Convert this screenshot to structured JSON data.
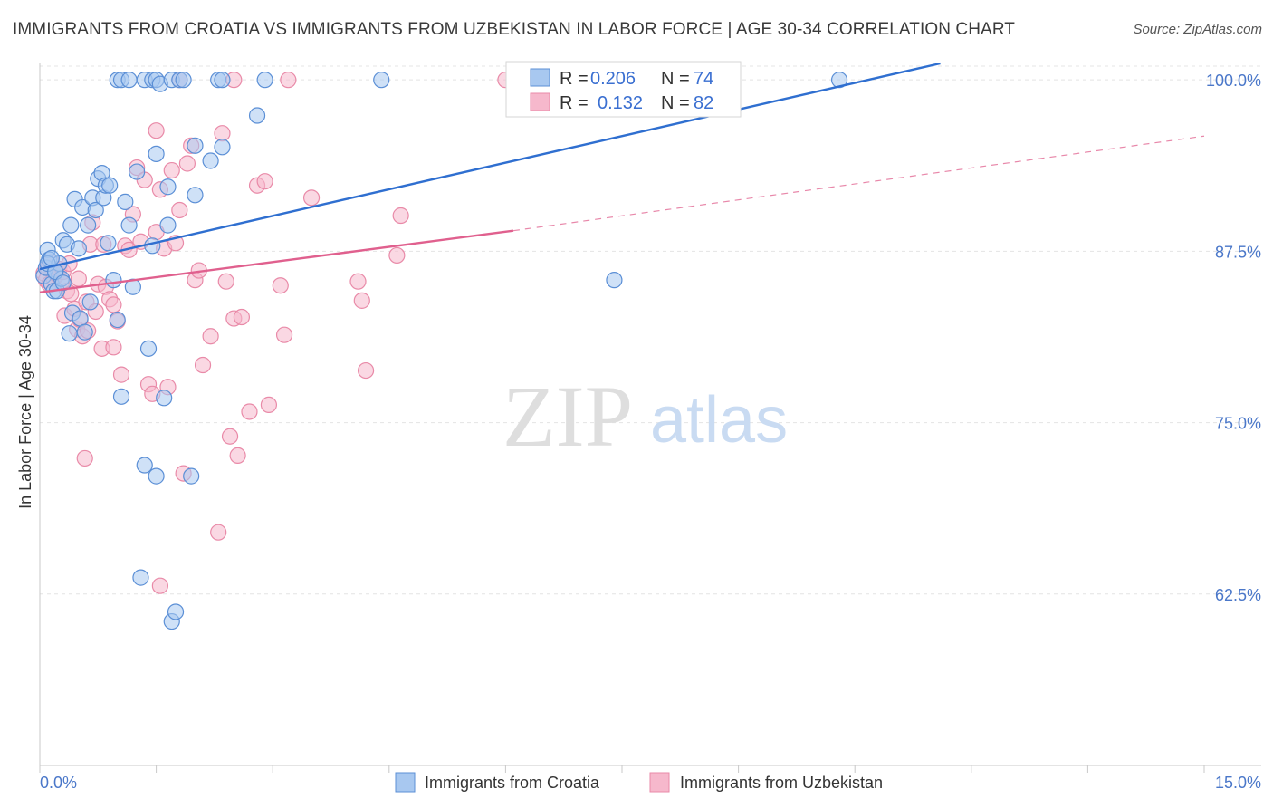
{
  "title": "IMMIGRANTS FROM CROATIA VS IMMIGRANTS FROM UZBEKISTAN IN LABOR FORCE | AGE 30-34 CORRELATION CHART",
  "source": "Source: ZipAtlas.com",
  "watermark": {
    "zip": "ZIP",
    "atlas": "atlas"
  },
  "colors": {
    "croatia_fill": "#a8c8f0",
    "croatia_stroke": "#5b8fd6",
    "croatia_line": "#2f6fd0",
    "uzbek_fill": "#f6b8cc",
    "uzbek_stroke": "#e98aa8",
    "uzbek_line": "#e0608e",
    "tick": "#4a77c9"
  },
  "stats_legend": {
    "rows": [
      {
        "r_label": "R =",
        "r_value": "0.206",
        "n_label": "N =",
        "n_value": "74"
      },
      {
        "r_label": "R =",
        "r_value": "0.132",
        "n_label": "N =",
        "n_value": "82"
      }
    ]
  },
  "chart_data": {
    "type": "scatter",
    "title": "IMMIGRANTS FROM CROATIA VS IMMIGRANTS FROM UZBEKISTAN IN LABOR FORCE | AGE 30-34 CORRELATION CHART",
    "xlabel": "",
    "ylabel": "In Labor Force | Age 30-34",
    "xlim": [
      0,
      15
    ],
    "ylim": [
      50,
      101.2
    ],
    "x_ticks": [
      "0.0%",
      "15.0%"
    ],
    "y_ticks": [
      {
        "value": 100,
        "label": "100.0%"
      },
      {
        "value": 87.5,
        "label": "87.5%"
      },
      {
        "value": 75,
        "label": "75.0%"
      },
      {
        "value": 62.5,
        "label": "62.5%"
      }
    ],
    "legend": [
      "Immigrants from Croatia",
      "Immigrants from Uzbekistan"
    ],
    "series": [
      {
        "name": "Immigrants from Croatia",
        "r": 0.206,
        "n": 74,
        "trend": {
          "x": [
            0,
            11.6
          ],
          "y": [
            86.2,
            101.2
          ],
          "dashed_to": null
        },
        "points": [
          [
            0.05,
            85.7
          ],
          [
            0.08,
            86.3
          ],
          [
            0.1,
            87.6
          ],
          [
            0.12,
            86.9
          ],
          [
            0.15,
            85.1
          ],
          [
            0.18,
            84.6
          ],
          [
            0.2,
            86.0
          ],
          [
            0.22,
            84.6
          ],
          [
            0.25,
            86.6
          ],
          [
            0.28,
            85.5
          ],
          [
            0.3,
            88.3
          ],
          [
            0.35,
            88.0
          ],
          [
            0.38,
            81.5
          ],
          [
            0.4,
            89.4
          ],
          [
            0.42,
            83.0
          ],
          [
            0.45,
            91.3
          ],
          [
            0.5,
            87.7
          ],
          [
            0.52,
            82.6
          ],
          [
            0.55,
            90.7
          ],
          [
            0.58,
            81.6
          ],
          [
            0.62,
            89.4
          ],
          [
            0.65,
            83.8
          ],
          [
            0.68,
            91.4
          ],
          [
            0.72,
            90.5
          ],
          [
            0.75,
            92.8
          ],
          [
            0.8,
            93.2
          ],
          [
            0.82,
            91.4
          ],
          [
            0.85,
            92.3
          ],
          [
            0.88,
            88.1
          ],
          [
            0.9,
            92.3
          ],
          [
            0.95,
            85.4
          ],
          [
            1.0,
            82.5
          ],
          [
            1.05,
            76.9
          ],
          [
            1.1,
            91.1
          ],
          [
            1.15,
            89.4
          ],
          [
            1.2,
            84.9
          ],
          [
            1.25,
            93.3
          ],
          [
            1.3,
            63.7
          ],
          [
            1.35,
            71.9
          ],
          [
            1.4,
            80.4
          ],
          [
            1.45,
            87.9
          ],
          [
            1.5,
            94.6
          ],
          [
            1.5,
            71.1
          ],
          [
            1.6,
            76.8
          ],
          [
            1.65,
            92.2
          ],
          [
            1.65,
            89.4
          ],
          [
            1.7,
            60.5
          ],
          [
            1.75,
            61.2
          ],
          [
            1.95,
            71.1
          ],
          [
            2.0,
            91.6
          ],
          [
            2.0,
            95.2
          ],
          [
            2.2,
            94.1
          ],
          [
            2.3,
            100.0
          ],
          [
            2.35,
            100.0
          ],
          [
            2.35,
            95.1
          ],
          [
            2.8,
            97.4
          ],
          [
            2.9,
            100.0
          ],
          [
            1.0,
            100.0
          ],
          [
            1.05,
            100.0
          ],
          [
            1.15,
            100.0
          ],
          [
            1.35,
            100.0
          ],
          [
            1.45,
            100.0
          ],
          [
            1.5,
            100.0
          ],
          [
            1.55,
            99.7
          ],
          [
            1.7,
            100.0
          ],
          [
            1.8,
            100.0
          ],
          [
            1.85,
            100.0
          ],
          [
            4.4,
            100.0
          ],
          [
            7.4,
            85.4
          ],
          [
            10.3,
            100.0
          ],
          [
            0.1,
            86.6
          ],
          [
            0.2,
            86.0
          ],
          [
            0.3,
            85.2
          ],
          [
            0.15,
            87.0
          ]
        ]
      },
      {
        "name": "Immigrants from Uzbekistan",
        "r": 0.132,
        "n": 82,
        "trend": {
          "x": [
            0,
            6.1
          ],
          "y": [
            84.5,
            89.0
          ],
          "dashed_to": [
            15,
            95.9
          ]
        },
        "points": [
          [
            0.05,
            85.9
          ],
          [
            0.08,
            85.4
          ],
          [
            0.1,
            86.3
          ],
          [
            0.12,
            85.1
          ],
          [
            0.15,
            86.7
          ],
          [
            0.18,
            85.5
          ],
          [
            0.2,
            85.9
          ],
          [
            0.22,
            85.8
          ],
          [
            0.25,
            86.2
          ],
          [
            0.28,
            85.2
          ],
          [
            0.3,
            86.0
          ],
          [
            0.32,
            82.8
          ],
          [
            0.35,
            84.6
          ],
          [
            0.38,
            86.6
          ],
          [
            0.4,
            84.4
          ],
          [
            0.45,
            83.3
          ],
          [
            0.48,
            81.8
          ],
          [
            0.5,
            85.5
          ],
          [
            0.52,
            82.5
          ],
          [
            0.55,
            81.3
          ],
          [
            0.58,
            72.4
          ],
          [
            0.6,
            83.8
          ],
          [
            0.62,
            81.7
          ],
          [
            0.65,
            88.0
          ],
          [
            0.68,
            89.6
          ],
          [
            0.72,
            83.1
          ],
          [
            0.75,
            85.1
          ],
          [
            0.8,
            80.4
          ],
          [
            0.82,
            88.0
          ],
          [
            0.85,
            84.9
          ],
          [
            0.9,
            84.0
          ],
          [
            0.95,
            83.6
          ],
          [
            0.95,
            80.5
          ],
          [
            1.0,
            82.4
          ],
          [
            1.05,
            78.5
          ],
          [
            1.1,
            87.9
          ],
          [
            1.15,
            87.6
          ],
          [
            1.2,
            90.2
          ],
          [
            1.25,
            93.6
          ],
          [
            1.3,
            88.2
          ],
          [
            1.35,
            92.7
          ],
          [
            1.4,
            77.8
          ],
          [
            1.45,
            77.1
          ],
          [
            1.5,
            88.9
          ],
          [
            1.55,
            63.1
          ],
          [
            1.6,
            87.7
          ],
          [
            1.65,
            77.6
          ],
          [
            1.7,
            93.4
          ],
          [
            1.75,
            88.1
          ],
          [
            1.8,
            90.5
          ],
          [
            1.85,
            71.3
          ],
          [
            1.9,
            93.9
          ],
          [
            1.95,
            95.2
          ],
          [
            2.0,
            85.4
          ],
          [
            2.05,
            86.1
          ],
          [
            2.1,
            79.2
          ],
          [
            2.2,
            81.3
          ],
          [
            2.3,
            67.0
          ],
          [
            2.35,
            96.1
          ],
          [
            2.4,
            85.3
          ],
          [
            2.45,
            74.0
          ],
          [
            2.5,
            82.6
          ],
          [
            2.55,
            72.6
          ],
          [
            2.6,
            82.7
          ],
          [
            2.7,
            75.8
          ],
          [
            2.8,
            92.3
          ],
          [
            2.9,
            92.6
          ],
          [
            2.95,
            76.3
          ],
          [
            3.1,
            85.0
          ],
          [
            3.15,
            81.4
          ],
          [
            3.5,
            91.4
          ],
          [
            4.1,
            85.3
          ],
          [
            4.15,
            83.9
          ],
          [
            4.2,
            78.8
          ],
          [
            4.6,
            87.2
          ],
          [
            4.65,
            90.1
          ],
          [
            1.5,
            96.3
          ],
          [
            1.8,
            100.0
          ],
          [
            2.5,
            100.0
          ],
          [
            3.2,
            100.0
          ],
          [
            6.0,
            100.0
          ],
          [
            1.55,
            92.0
          ]
        ]
      }
    ],
    "grid": true,
    "legend_position": "bottom"
  },
  "bottom_legend": {
    "croatia": "Immigrants from Croatia",
    "uzbekistan": "Immigrants from Uzbekistan"
  }
}
